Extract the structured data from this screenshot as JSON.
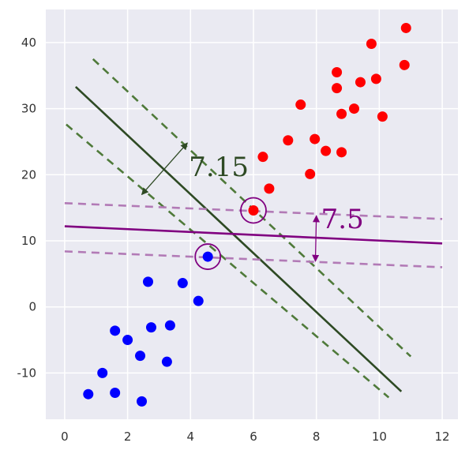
{
  "chart_data": {
    "type": "scatter",
    "xlim": [
      -0.6,
      12.5
    ],
    "ylim": [
      -17,
      45
    ],
    "xticks": [
      "0",
      "2",
      "4",
      "6",
      "8",
      "10",
      "12"
    ],
    "yticks": [
      "-10",
      "0",
      "10",
      "20",
      "30",
      "40"
    ],
    "xtick_values": [
      0,
      2,
      4,
      6,
      8,
      10,
      12
    ],
    "ytick_values": [
      -10,
      0,
      10,
      20,
      30,
      40
    ],
    "grid": true,
    "series": [
      {
        "color": "#ff0000",
        "points": [
          [
            6.0,
            14.6
          ],
          [
            6.3,
            22.7
          ],
          [
            6.5,
            17.9
          ],
          [
            7.1,
            25.2
          ],
          [
            7.5,
            30.6
          ],
          [
            7.8,
            20.1
          ],
          [
            7.95,
            25.4
          ],
          [
            8.3,
            23.6
          ],
          [
            8.65,
            33.1
          ],
          [
            8.65,
            35.5
          ],
          [
            8.8,
            29.2
          ],
          [
            8.8,
            23.4
          ],
          [
            9.2,
            30.0
          ],
          [
            9.4,
            34.0
          ],
          [
            9.75,
            39.8
          ],
          [
            9.9,
            34.5
          ],
          [
            10.1,
            28.8
          ],
          [
            10.8,
            36.6
          ],
          [
            10.85,
            42.2
          ]
        ]
      },
      {
        "color": "#0000ff",
        "points": [
          [
            4.55,
            7.6
          ],
          [
            2.65,
            3.8
          ],
          [
            3.75,
            3.6
          ],
          [
            4.25,
            0.9
          ],
          [
            1.6,
            -3.6
          ],
          [
            2.0,
            -5.0
          ],
          [
            2.75,
            -3.1
          ],
          [
            3.35,
            -2.8
          ],
          [
            2.4,
            -7.4
          ],
          [
            3.25,
            -8.3
          ],
          [
            1.2,
            -10.0
          ],
          [
            0.75,
            -13.2
          ],
          [
            1.6,
            -13.0
          ],
          [
            2.45,
            -14.3
          ]
        ]
      }
    ],
    "lines": [
      {
        "color": "#2e4a24",
        "style": "solid",
        "x": [
          0.35,
          10.7
        ],
        "y": [
          33.3,
          -12.8
        ]
      },
      {
        "color": "#4f7a3a",
        "style": "dashed",
        "x": [
          0.9,
          11.0
        ],
        "y": [
          37.5,
          -7.5
        ]
      },
      {
        "color": "#4f7a3a",
        "style": "dashed",
        "x": [
          0.05,
          10.3
        ],
        "y": [
          27.6,
          -13.7
        ]
      },
      {
        "color": "#800080",
        "style": "solid",
        "x": [
          0.0,
          12.0
        ],
        "y": [
          12.2,
          9.6
        ]
      },
      {
        "color": "#b27ab6",
        "style": "dashed",
        "x": [
          0.0,
          12.0
        ],
        "y": [
          15.7,
          13.3
        ]
      },
      {
        "color": "#b27ab6",
        "style": "dashed",
        "x": [
          0.0,
          12.0
        ],
        "y": [
          8.4,
          6.0
        ]
      }
    ],
    "support_vector_circles": [
      {
        "x": 6.0,
        "y": 14.6,
        "color": "#800080"
      },
      {
        "x": 4.55,
        "y": 7.6,
        "color": "#800080"
      }
    ],
    "margin_arrows": [
      {
        "color": "#2e4a24",
        "x": [
          2.45,
          3.9
        ],
        "y": [
          17.0,
          24.8
        ]
      },
      {
        "color": "#800080",
        "x": [
          8.0,
          7.97
        ],
        "y": [
          13.8,
          6.9
        ]
      }
    ],
    "annotations": [
      {
        "text": "7.15",
        "x": 3.95,
        "y": 19.8,
        "color": "#2e4a24"
      },
      {
        "text": "7.5",
        "x": 8.15,
        "y": 11.9,
        "color": "#800080"
      }
    ]
  }
}
